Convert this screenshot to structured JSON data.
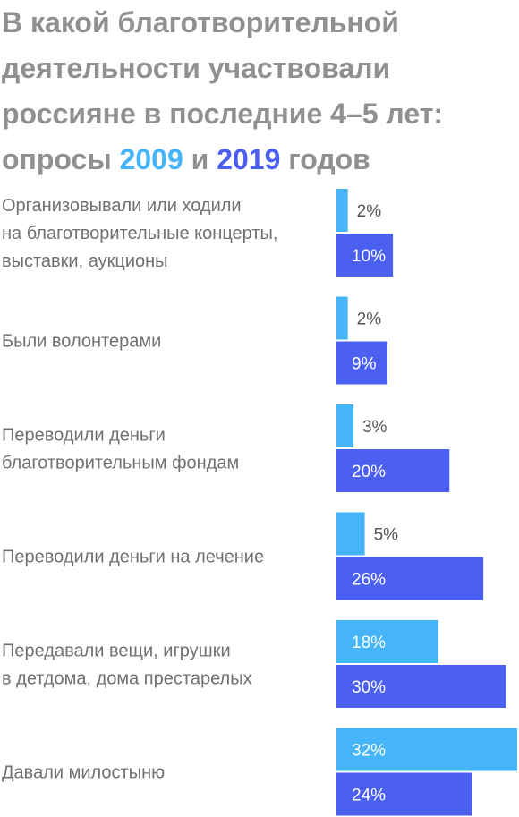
{
  "title": {
    "line1": "В какой благотворительной",
    "line2": "деятельности участвовали",
    "line3": "россияне в последние 4–5 лет:",
    "line4_prefix": "опросы",
    "year1": "2009",
    "conj": "и",
    "year2": "2019",
    "line4_suffix": "годов"
  },
  "colors": {
    "series_2009": "#46b4f8",
    "series_2019": "#4b5ff0",
    "label_inside": "#ffffff",
    "label_outside": "#555555",
    "text": "#707070",
    "title": "#909090"
  },
  "chart_data": {
    "type": "bar",
    "orientation": "horizontal",
    "categories": [
      [
        "Организовывали или ходили",
        "на благотворительные концерты,",
        "выставки, аукционы"
      ],
      [
        "Были волонтерами"
      ],
      [
        "Переводили деньги",
        "благотворительным фондам"
      ],
      [
        "Переводили деньги на лечение"
      ],
      [
        "Передавали вещи, игрушки",
        "в детдома, дома престарелых"
      ],
      [
        "Давали милостыню"
      ]
    ],
    "series": [
      {
        "name": "2009",
        "values": [
          2,
          2,
          3,
          5,
          18,
          32
        ],
        "labels": [
          "2%",
          "2%",
          "3%",
          "5%",
          "18%",
          "32%"
        ]
      },
      {
        "name": "2019",
        "values": [
          10,
          9,
          20,
          26,
          30,
          24
        ],
        "labels": [
          "10%",
          "9%",
          "20%",
          "26%",
          "30%",
          "24%"
        ]
      }
    ],
    "xlim": [
      0,
      32
    ],
    "grid": false,
    "legend": "in title"
  }
}
